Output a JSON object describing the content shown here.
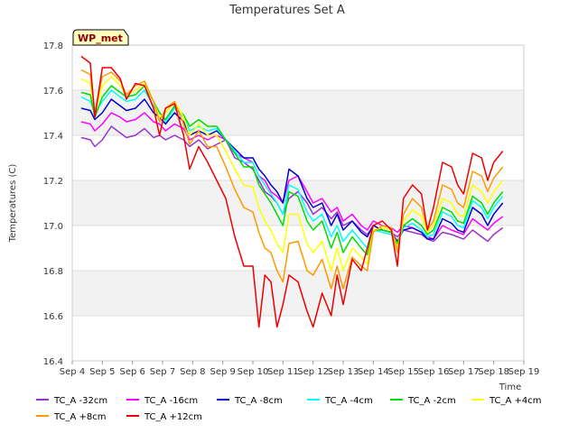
{
  "chart_data": {
    "type": "line",
    "title": "Temperatures Set A",
    "xlabel": "Time",
    "ylabel": "Temperatures (C)",
    "badge": "WP_met",
    "ylim": [
      16.4,
      17.8
    ],
    "yticks": [
      16.4,
      16.6,
      16.8,
      17.0,
      17.2,
      17.4,
      17.6,
      17.8
    ],
    "xlim": [
      4,
      19
    ],
    "xticks": [
      4,
      5,
      6,
      7,
      8,
      9,
      10,
      11,
      12,
      13,
      14,
      15,
      16,
      17,
      18,
      19
    ],
    "xtick_labels": [
      "Sep 4",
      "Sep 5",
      "Sep 6",
      "Sep 7",
      "Sep 8",
      "Sep 9",
      "Sep 10",
      "Sep 11",
      "Sep 12",
      "Sep 13",
      "Sep 14",
      "Sep 15",
      "Sep 16",
      "Sep 17",
      "Sep 18",
      "Sep 19"
    ],
    "background_bands": "alternating light-gray horizontal bands",
    "legend_position": "bottom",
    "x": [
      4.3,
      4.6,
      4.75,
      5.0,
      5.3,
      5.6,
      5.8,
      6.1,
      6.4,
      6.7,
      6.9,
      7.1,
      7.4,
      7.7,
      7.9,
      8.2,
      8.5,
      8.8,
      9.1,
      9.4,
      9.7,
      10.0,
      10.2,
      10.4,
      10.6,
      10.8,
      11.0,
      11.2,
      11.5,
      11.8,
      12.0,
      12.3,
      12.6,
      12.8,
      13.0,
      13.3,
      13.6,
      13.8,
      14.0,
      14.3,
      14.6,
      14.8,
      15.0,
      15.3,
      15.6,
      15.8,
      16.0,
      16.3,
      16.6,
      16.8,
      17.0,
      17.3,
      17.6,
      17.8,
      18.0,
      18.3
    ],
    "series": [
      {
        "name": "TC_A -32cm",
        "color": "#9933cc",
        "values": [
          17.39,
          17.38,
          17.35,
          17.38,
          17.44,
          17.41,
          17.39,
          17.4,
          17.43,
          17.39,
          17.4,
          17.38,
          17.4,
          17.38,
          17.35,
          17.38,
          17.34,
          17.36,
          17.38,
          17.3,
          17.28,
          17.25,
          17.2,
          17.15,
          17.13,
          17.1,
          17.05,
          17.12,
          17.15,
          17.1,
          17.05,
          17.08,
          17.03,
          17.06,
          17.0,
          17.02,
          16.98,
          16.96,
          17.0,
          16.98,
          16.97,
          16.95,
          16.98,
          16.97,
          16.96,
          16.94,
          16.93,
          16.97,
          16.96,
          16.95,
          16.94,
          16.98,
          16.95,
          16.93,
          16.96,
          16.99
        ]
      },
      {
        "name": "TC_A -16cm",
        "color": "#ff00ff",
        "values": [
          17.46,
          17.45,
          17.42,
          17.45,
          17.5,
          17.48,
          17.46,
          17.47,
          17.5,
          17.46,
          17.45,
          17.42,
          17.45,
          17.43,
          17.38,
          17.4,
          17.38,
          17.4,
          17.38,
          17.32,
          17.3,
          17.28,
          17.22,
          17.2,
          17.15,
          17.13,
          17.1,
          17.2,
          17.22,
          17.15,
          17.1,
          17.12,
          17.06,
          17.08,
          17.02,
          17.05,
          17.0,
          16.98,
          17.02,
          17.0,
          16.99,
          16.97,
          17.0,
          16.99,
          16.97,
          16.95,
          16.94,
          17.0,
          16.98,
          16.97,
          16.96,
          17.03,
          17.0,
          16.98,
          17.01,
          17.04
        ]
      },
      {
        "name": "TC_A -8cm",
        "color": "#0000cc",
        "values": [
          17.52,
          17.51,
          17.47,
          17.5,
          17.56,
          17.53,
          17.51,
          17.52,
          17.56,
          17.5,
          17.48,
          17.45,
          17.5,
          17.46,
          17.4,
          17.42,
          17.4,
          17.42,
          17.38,
          17.34,
          17.3,
          17.3,
          17.25,
          17.22,
          17.18,
          17.15,
          17.1,
          17.25,
          17.22,
          17.12,
          17.08,
          17.1,
          17.0,
          17.05,
          16.98,
          17.02,
          16.97,
          16.95,
          17.0,
          16.98,
          16.97,
          16.93,
          16.98,
          16.99,
          16.97,
          16.94,
          16.94,
          17.03,
          17.01,
          16.98,
          16.97,
          17.08,
          17.05,
          17.0,
          17.05,
          17.1
        ]
      },
      {
        "name": "TC_A -4cm",
        "color": "#00ffff",
        "values": [
          17.57,
          17.55,
          17.5,
          17.55,
          17.6,
          17.57,
          17.55,
          17.56,
          17.6,
          17.53,
          17.5,
          17.46,
          17.52,
          17.48,
          17.42,
          17.44,
          17.42,
          17.43,
          17.38,
          17.33,
          17.28,
          17.28,
          17.22,
          17.18,
          17.14,
          17.1,
          17.05,
          17.18,
          17.16,
          17.06,
          17.02,
          17.05,
          16.95,
          17.0,
          16.93,
          16.98,
          16.93,
          16.9,
          16.98,
          16.97,
          16.96,
          16.92,
          16.99,
          17.01,
          16.98,
          16.95,
          16.96,
          17.06,
          17.04,
          17.0,
          16.99,
          17.11,
          17.08,
          17.03,
          17.08,
          17.13
        ]
      },
      {
        "name": "TC_A -2cm",
        "color": "#00dd00",
        "values": [
          17.59,
          17.58,
          17.48,
          17.57,
          17.62,
          17.59,
          17.57,
          17.58,
          17.62,
          17.55,
          17.5,
          17.47,
          17.53,
          17.49,
          17.44,
          17.47,
          17.44,
          17.44,
          17.38,
          17.32,
          17.26,
          17.26,
          17.18,
          17.14,
          17.1,
          17.05,
          17.0,
          17.15,
          17.13,
          17.02,
          16.98,
          17.02,
          16.9,
          16.97,
          16.88,
          16.95,
          16.9,
          16.87,
          16.98,
          16.98,
          16.97,
          16.92,
          17.0,
          17.03,
          17.0,
          16.96,
          16.98,
          17.08,
          17.06,
          17.02,
          17.01,
          17.13,
          17.1,
          17.05,
          17.1,
          17.15
        ]
      },
      {
        "name": "TC_A +4cm",
        "color": "#ffff00",
        "values": [
          17.65,
          17.63,
          17.5,
          17.62,
          17.66,
          17.62,
          17.58,
          17.6,
          17.63,
          17.55,
          17.48,
          17.5,
          17.55,
          17.48,
          17.4,
          17.45,
          17.4,
          17.4,
          17.33,
          17.25,
          17.18,
          17.17,
          17.08,
          17.02,
          16.98,
          16.92,
          16.88,
          17.05,
          17.05,
          16.92,
          16.88,
          16.93,
          16.8,
          16.9,
          16.8,
          16.9,
          16.86,
          16.83,
          16.98,
          16.99,
          16.98,
          16.9,
          17.02,
          17.07,
          17.04,
          16.97,
          17.0,
          17.12,
          17.1,
          17.05,
          17.04,
          17.18,
          17.15,
          17.1,
          17.15,
          17.2
        ]
      },
      {
        "name": "TC_A +8cm",
        "color": "#ff9900",
        "values": [
          17.69,
          17.67,
          17.5,
          17.66,
          17.68,
          17.64,
          17.58,
          17.62,
          17.64,
          17.55,
          17.46,
          17.52,
          17.55,
          17.45,
          17.36,
          17.42,
          17.35,
          17.35,
          17.26,
          17.16,
          17.08,
          17.06,
          16.97,
          16.9,
          16.88,
          16.8,
          16.75,
          16.92,
          16.93,
          16.8,
          16.78,
          16.85,
          16.72,
          16.82,
          16.72,
          16.86,
          16.82,
          16.8,
          16.97,
          17.0,
          16.99,
          16.88,
          17.05,
          17.12,
          17.08,
          16.98,
          17.02,
          17.18,
          17.16,
          17.1,
          17.08,
          17.24,
          17.22,
          17.15,
          17.21,
          17.26
        ]
      },
      {
        "name": "TC_A +12cm",
        "color": "#ee0000",
        "values": [
          17.75,
          17.72,
          17.48,
          17.7,
          17.7,
          17.65,
          17.56,
          17.63,
          17.62,
          17.52,
          17.4,
          17.52,
          17.54,
          17.4,
          17.25,
          17.35,
          17.28,
          17.2,
          17.12,
          16.95,
          16.82,
          16.82,
          16.55,
          16.78,
          16.75,
          16.55,
          16.65,
          16.78,
          16.75,
          16.62,
          16.55,
          16.7,
          16.6,
          16.78,
          16.65,
          16.85,
          16.8,
          16.9,
          17.0,
          17.02,
          16.98,
          16.82,
          17.12,
          17.18,
          17.14,
          16.98,
          17.08,
          17.28,
          17.26,
          17.18,
          17.14,
          17.32,
          17.3,
          17.2,
          17.28,
          17.33
        ]
      }
    ]
  }
}
